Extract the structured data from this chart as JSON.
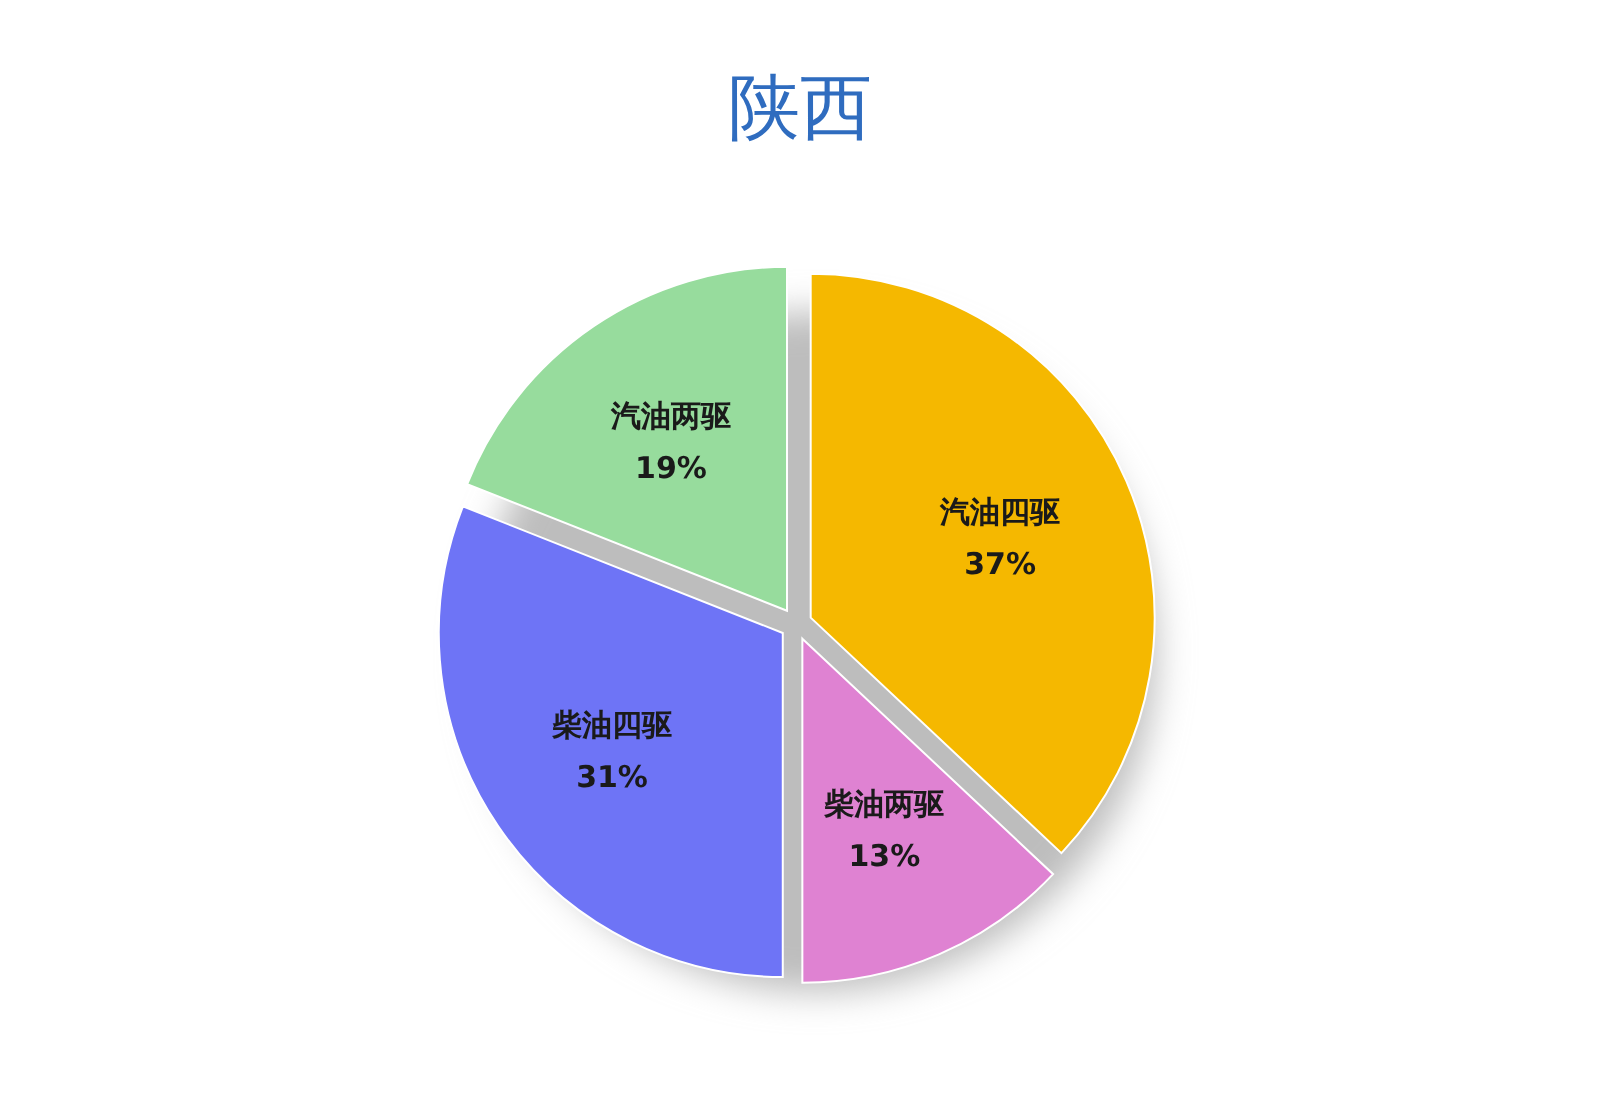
{
  "chart_data": {
    "type": "pie",
    "title": "陕西",
    "categories": [
      "汽油四驱",
      "柴油两驱",
      "柴油四驱",
      "汽油两驱"
    ],
    "values": [
      37,
      13,
      31,
      19
    ],
    "colors": [
      "#f5b800",
      "#df82d2",
      "#6e74f6",
      "#97dc9d"
    ],
    "value_labels": [
      "37%",
      "13%",
      "31%",
      "19%"
    ]
  }
}
